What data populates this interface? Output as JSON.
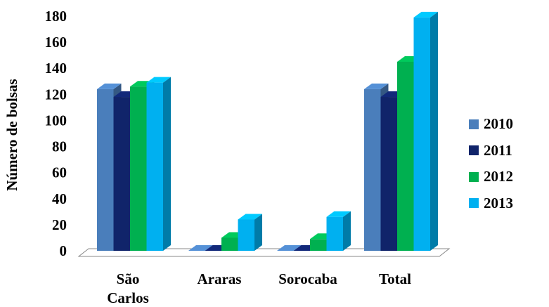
{
  "chart_data": {
    "type": "bar",
    "ylabel": "Número de bolsas",
    "xlabel": "",
    "ylim": [
      0,
      180
    ],
    "yticks": [
      0,
      20,
      40,
      60,
      80,
      100,
      120,
      140,
      160,
      180
    ],
    "categories": [
      [
        "São",
        "Carlos"
      ],
      [
        "Araras"
      ],
      [
        "Sorocaba"
      ],
      [
        "Total"
      ]
    ],
    "series": [
      {
        "name": "2010",
        "color": "#4a7ebb",
        "values": [
          124,
          0,
          0,
          124
        ]
      },
      {
        "name": "2011",
        "color": "#10246a",
        "values": [
          118,
          0,
          0,
          118
        ]
      },
      {
        "name": "2012",
        "color": "#00b050",
        "values": [
          126,
          10,
          9,
          145
        ]
      },
      {
        "name": "2013",
        "color": "#00b0f0",
        "values": [
          129,
          24,
          26,
          179
        ]
      }
    ],
    "legend_position": "right",
    "grid": false
  }
}
